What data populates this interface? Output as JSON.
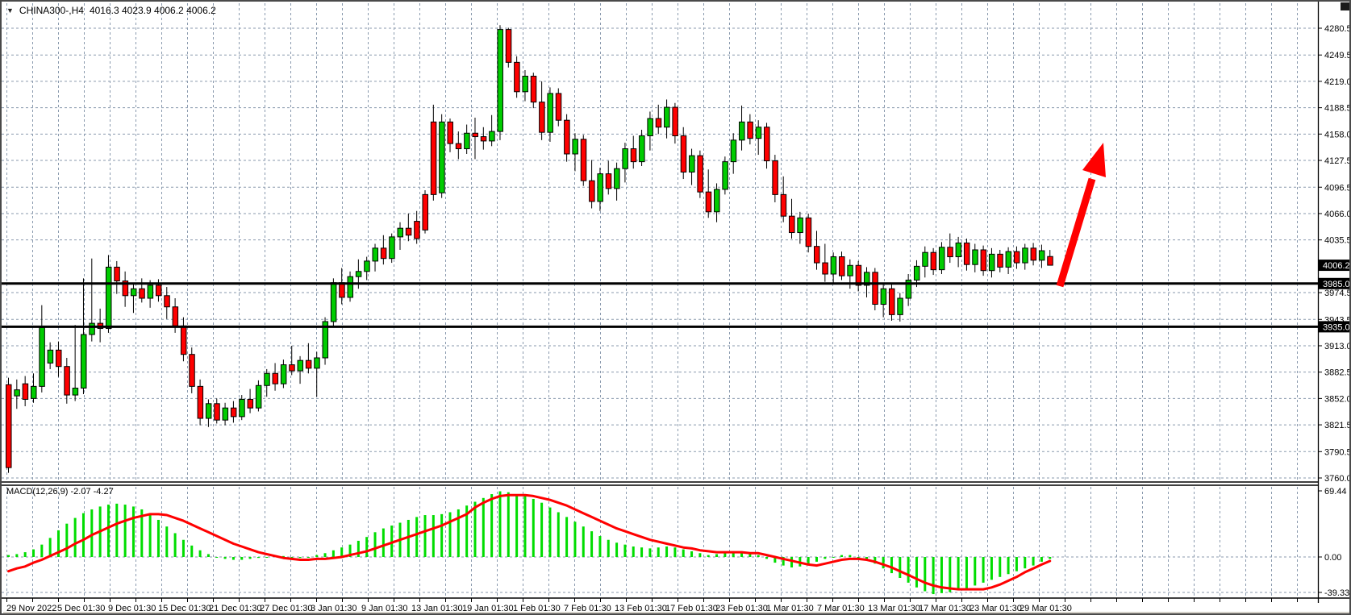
{
  "window": {
    "title": {
      "symbol": "CHINA300-,H4",
      "ohlc_text": "4016.3 4023.9 4006.2 4006.2"
    },
    "indicator_label": {
      "name_params": "MACD(12,26,9)",
      "values_text": "-2.07 -4.27"
    }
  },
  "chart_data": {
    "type": "candlestick",
    "title": "CHINA300-,H4",
    "symbol": "CHINA300-",
    "timeframe": "H4",
    "last_bar": {
      "open": 4016.3,
      "high": 4023.9,
      "low": 4006.2,
      "close": 4006.2
    },
    "current_price": 4006.2,
    "ylim": [
      3754,
      4311
    ],
    "grid": true,
    "price_ticks": [
      4280.5,
      4249.5,
      4219.0,
      4188.5,
      4158.0,
      4127.5,
      4096.5,
      4066.0,
      4035.5,
      3974.5,
      3943.5,
      3913.0,
      3882.5,
      3852.0,
      3821.5,
      3790.5,
      3760.0
    ],
    "hline_levels": [
      3985.0,
      3935.0
    ],
    "x_labels": [
      "29 Nov 2022",
      "5 Dec 01:30",
      "9 Dec 01:30",
      "15 Dec 01:30",
      "21 Dec 01:30",
      "27 Dec 01:30",
      "3 Jan 01:30",
      "9 Jan 01:30",
      "13 Jan 01:30",
      "19 Jan 01:30",
      "1 Feb 01:30",
      "7 Feb 01:30",
      "13 Feb 01:30",
      "17 Feb 01:30",
      "23 Feb 01:30",
      "1 Mar 01:30",
      "7 Mar 01:30",
      "13 Mar 01:30",
      "17 Mar 01:30",
      "23 Mar 01:30",
      "29 Mar 01:30"
    ],
    "x_label_pos": [
      6,
      69,
      132,
      194,
      257,
      320,
      383,
      446,
      508,
      571,
      634,
      697,
      760,
      823,
      885,
      948,
      1011,
      1074,
      1137,
      1200,
      1262
    ],
    "candles": [
      [
        3868,
        3876,
        3766,
        3772
      ],
      [
        3855,
        3874,
        3840,
        3862
      ],
      [
        3869,
        3878,
        3843,
        3851
      ],
      [
        3852,
        3881,
        3847,
        3866
      ],
      [
        3866,
        3960,
        3859,
        3934
      ],
      [
        3893,
        3917,
        3886,
        3908
      ],
      [
        3908,
        3918,
        3877,
        3889
      ],
      [
        3889,
        3899,
        3846,
        3856
      ],
      [
        3856,
        3937,
        3849,
        3864
      ],
      [
        3864,
        3991,
        3857,
        3926
      ],
      [
        3926,
        4014,
        3918,
        3939
      ],
      [
        3939,
        3956,
        3917,
        3933
      ],
      [
        3933,
        4018,
        3928,
        4004
      ],
      [
        4004,
        4011,
        3973,
        3988
      ],
      [
        3988,
        3999,
        3958,
        3971
      ],
      [
        3971,
        3986,
        3951,
        3979
      ],
      [
        3979,
        3991,
        3963,
        3968
      ],
      [
        3968,
        3989,
        3957,
        3983
      ],
      [
        3983,
        3990,
        3964,
        3971
      ],
      [
        3971,
        3981,
        3944,
        3958
      ],
      [
        3958,
        3968,
        3928,
        3936
      ],
      [
        3936,
        3946,
        3895,
        3903
      ],
      [
        3903,
        3911,
        3858,
        3866
      ],
      [
        3866,
        3874,
        3821,
        3829
      ],
      [
        3829,
        3851,
        3819,
        3846
      ],
      [
        3846,
        3852,
        3823,
        3827
      ],
      [
        3827,
        3847,
        3821,
        3841
      ],
      [
        3841,
        3849,
        3824,
        3831
      ],
      [
        3831,
        3856,
        3827,
        3851
      ],
      [
        3851,
        3863,
        3835,
        3841
      ],
      [
        3841,
        3873,
        3837,
        3867
      ],
      [
        3867,
        3886,
        3854,
        3881
      ],
      [
        3881,
        3893,
        3861,
        3869
      ],
      [
        3869,
        3897,
        3864,
        3891
      ],
      [
        3891,
        3913,
        3879,
        3884
      ],
      [
        3884,
        3901,
        3869,
        3896
      ],
      [
        3896,
        3916,
        3881,
        3887
      ],
      [
        3887,
        3906,
        3854,
        3899
      ],
      [
        3899,
        3946,
        3891,
        3941
      ],
      [
        3941,
        3991,
        3934,
        3986
      ],
      [
        3986,
        4003,
        3961,
        3969
      ],
      [
        3969,
        3999,
        3964,
        3993
      ],
      [
        3993,
        4013,
        3979,
        3999
      ],
      [
        3999,
        4016,
        3989,
        4011
      ],
      [
        4011,
        4031,
        3999,
        4026
      ],
      [
        4026,
        4041,
        4007,
        4014
      ],
      [
        4014,
        4043,
        4009,
        4039
      ],
      [
        4039,
        4056,
        4024,
        4049
      ],
      [
        4049,
        4066,
        4034,
        4041
      ],
      [
        4057,
        4069,
        4031,
        4037
      ],
      [
        4088,
        4093,
        4043,
        4047
      ],
      [
        4172,
        4192,
        4081,
        4088
      ],
      [
        4090,
        4181,
        4084,
        4172
      ],
      [
        4172,
        4176,
        4137,
        4147
      ],
      [
        4147,
        4161,
        4129,
        4141
      ],
      [
        4141,
        4169,
        4135,
        4159
      ],
      [
        4159,
        4177,
        4129,
        4155
      ],
      [
        4155,
        4166,
        4140,
        4150
      ],
      [
        4150,
        4180,
        4144,
        4161
      ],
      [
        4161,
        4284,
        4151,
        4279
      ],
      [
        4279,
        4281,
        4235,
        4241
      ],
      [
        4241,
        4248,
        4200,
        4207
      ],
      [
        4207,
        4232,
        4196,
        4225
      ],
      [
        4225,
        4229,
        4188,
        4195
      ],
      [
        4195,
        4219,
        4151,
        4160
      ],
      [
        4160,
        4212,
        4149,
        4205
      ],
      [
        4205,
        4211,
        4167,
        4174
      ],
      [
        4174,
        4181,
        4126,
        4135
      ],
      [
        4135,
        4159,
        4115,
        4152
      ],
      [
        4152,
        4157,
        4098,
        4104
      ],
      [
        4104,
        4128,
        4072,
        4080
      ],
      [
        4080,
        4119,
        4069,
        4112
      ],
      [
        4112,
        4127,
        4088,
        4095
      ],
      [
        4095,
        4125,
        4081,
        4118
      ],
      [
        4118,
        4148,
        4102,
        4141
      ],
      [
        4141,
        4156,
        4118,
        4126
      ],
      [
        4126,
        4163,
        4121,
        4156
      ],
      [
        4156,
        4184,
        4139,
        4176
      ],
      [
        4176,
        4192,
        4158,
        4166
      ],
      [
        4166,
        4198,
        4153,
        4189
      ],
      [
        4189,
        4194,
        4147,
        4156
      ],
      [
        4156,
        4166,
        4106,
        4114
      ],
      [
        4114,
        4141,
        4099,
        4133
      ],
      [
        4133,
        4139,
        4084,
        4091
      ],
      [
        4091,
        4117,
        4061,
        4068
      ],
      [
        4068,
        4101,
        4056,
        4094
      ],
      [
        4094,
        4132,
        4088,
        4126
      ],
      [
        4126,
        4159,
        4112,
        4151
      ],
      [
        4151,
        4191,
        4139,
        4172
      ],
      [
        4172,
        4181,
        4146,
        4153
      ],
      [
        4153,
        4174,
        4134,
        4166
      ],
      [
        4166,
        4171,
        4118,
        4127
      ],
      [
        4127,
        4134,
        4079,
        4088
      ],
      [
        4088,
        4109,
        4056,
        4063
      ],
      [
        4063,
        4083,
        4037,
        4044
      ],
      [
        4044,
        4068,
        4031,
        4061
      ],
      [
        4061,
        4066,
        4021,
        4028
      ],
      [
        4028,
        4046,
        4001,
        4009
      ],
      [
        4009,
        4031,
        3987,
        3996
      ],
      [
        3996,
        4021,
        3984,
        4016
      ],
      [
        4016,
        4022,
        3989,
        3994
      ],
      [
        3994,
        4013,
        3979,
        4006
      ],
      [
        4006,
        4011,
        3976,
        3983
      ],
      [
        3983,
        4004,
        3969,
        3998
      ],
      [
        3998,
        4003,
        3954,
        3961
      ],
      [
        3961,
        3986,
        3946,
        3979
      ],
      [
        3979,
        3984,
        3942,
        3949
      ],
      [
        3949,
        3974,
        3941,
        3968
      ],
      [
        3968,
        3996,
        3959,
        3989
      ],
      [
        3989,
        4012,
        3981,
        4005
      ],
      [
        4005,
        4028,
        3992,
        4021
      ],
      [
        4021,
        4026,
        3995,
        4001
      ],
      [
        4001,
        4033,
        3996,
        4027
      ],
      [
        4027,
        4043,
        4009,
        4016
      ],
      [
        4016,
        4039,
        4004,
        4032
      ],
      [
        4032,
        4037,
        4000,
        4007
      ],
      [
        4007,
        4031,
        3998,
        4024
      ],
      [
        4024,
        4029,
        3994,
        4000
      ],
      [
        4000,
        4026,
        3992,
        4019
      ],
      [
        4019,
        4024,
        3998,
        4004
      ],
      [
        4004,
        4027,
        3996,
        4022
      ],
      [
        4022,
        4028,
        4002,
        4009
      ],
      [
        4009,
        4031,
        4001,
        4026
      ],
      [
        4026,
        4032,
        4006,
        4012
      ],
      [
        4012,
        4030,
        4003,
        4023
      ],
      [
        4016.3,
        4023.9,
        4006.2,
        4006.2
      ]
    ],
    "indicator": {
      "name": "MACD",
      "params": "12,26,9",
      "current_values": [
        -2.07,
        -4.27
      ],
      "axis_ticks": [
        69.44,
        0.0,
        -39.33
      ],
      "histogram": [
        2,
        3,
        5,
        8,
        13,
        20,
        28,
        35,
        41,
        46,
        50,
        53,
        55,
        56,
        55,
        53,
        50,
        45,
        39,
        32,
        25,
        18,
        12,
        7,
        3,
        0,
        -2,
        -3,
        -3,
        -2,
        -1,
        0,
        1,
        1,
        0,
        -1,
        0,
        2,
        4,
        7,
        10,
        13,
        17,
        21,
        26,
        30,
        33,
        36,
        39,
        42,
        44,
        44,
        45,
        47,
        50,
        54,
        58,
        62,
        66,
        69,
        68,
        66,
        64,
        61,
        57,
        52,
        47,
        42,
        37,
        32,
        27,
        22,
        18,
        15,
        13,
        11,
        10,
        9,
        10,
        11,
        10,
        8,
        6,
        4,
        2,
        3,
        5,
        6,
        6,
        4,
        2,
        -2,
        -6,
        -9,
        -11,
        -10,
        -8,
        -5,
        -2,
        0,
        2,
        2,
        0,
        -3,
        -7,
        -12,
        -17,
        -22,
        -27,
        -32,
        -36,
        -39,
        -38,
        -37,
        -35,
        -33,
        -30,
        -27,
        -24,
        -21,
        -18,
        -15,
        -12,
        -9,
        -5,
        -2.07
      ],
      "signal": [
        -15,
        -12,
        -10,
        -6,
        -3,
        1,
        5,
        9,
        14,
        18,
        23,
        27,
        31,
        35,
        38,
        41,
        43,
        45,
        45,
        44,
        41,
        38,
        34,
        30,
        26,
        22,
        18,
        14,
        11,
        8,
        5,
        3,
        1,
        -1,
        -2,
        -3,
        -3,
        -2,
        -2,
        -1,
        0,
        2,
        4,
        6,
        9,
        12,
        15,
        18,
        21,
        24,
        27,
        30,
        33,
        37,
        41,
        45,
        52,
        57,
        61,
        64,
        65,
        65,
        65,
        64,
        62,
        60,
        57,
        54,
        50,
        46,
        42,
        38,
        34,
        30,
        27,
        24,
        21,
        18,
        16,
        14,
        12,
        10,
        9,
        7,
        6,
        5,
        5,
        5,
        5,
        4,
        4,
        2,
        0,
        -2,
        -4,
        -6,
        -8,
        -9,
        -7,
        -5,
        -3,
        -2,
        -2,
        -3,
        -5,
        -8,
        -11,
        -15,
        -19,
        -23,
        -27,
        -30,
        -32,
        -33,
        -34,
        -34,
        -34,
        -34,
        -32,
        -29,
        -25,
        -21,
        -16,
        -12,
        -8,
        -4.27
      ]
    },
    "annotations": [
      {
        "type": "arrow",
        "direction": "up-right",
        "color": "#ff0000",
        "tail": [
          1312,
          353
        ],
        "tip": [
          1366,
          175
        ]
      }
    ],
    "colors": {
      "background": "#ffffff",
      "grid": "#8a9aae",
      "candle_up": "#00cc00",
      "candle_down": "#ff0000",
      "candle_border": "#000000",
      "macd_histogram": "#00dd00",
      "macd_signal": "#ff0000",
      "hline": "#000000",
      "badge_bg": "#000000",
      "badge_text": "#ffffff",
      "axis_text": "#000000",
      "frame": "#4a4a4a",
      "bottom_strip": "#d4d0c8",
      "arrow": "#ff0000"
    }
  }
}
